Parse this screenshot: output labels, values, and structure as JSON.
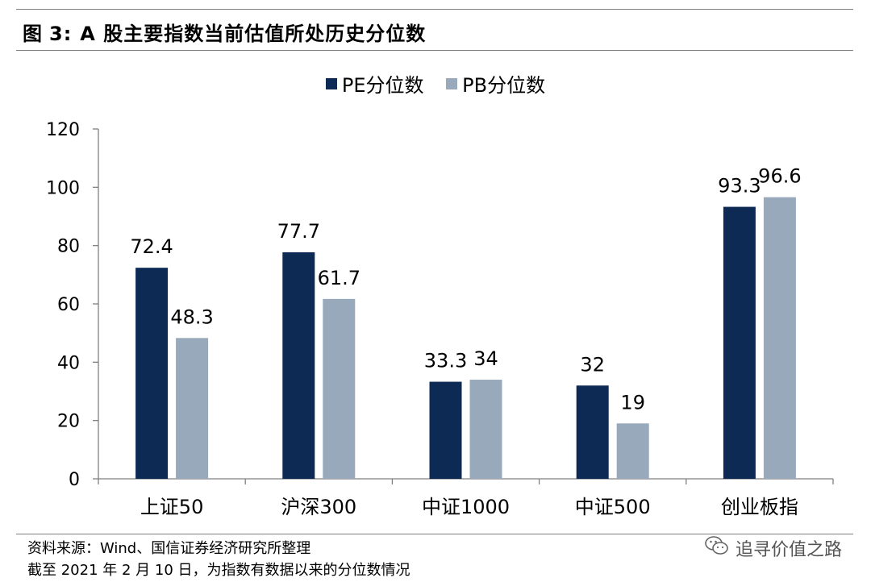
{
  "header": {
    "figure_label": "图",
    "figure_number": "3:",
    "title": "A 股主要指数当前估值所处历史分位数"
  },
  "chart_data": {
    "type": "bar",
    "categories": [
      "上证50",
      "沪深300",
      "中证1000",
      "中证500",
      "创业板指"
    ],
    "series": [
      {
        "name": "PE分位数",
        "values": [
          72.4,
          77.7,
          33.3,
          32,
          93.3
        ],
        "labels": [
          "72.4",
          "77.7",
          "33.3",
          "32",
          "93.3"
        ],
        "color": "#0d2a54"
      },
      {
        "name": "PB分位数",
        "values": [
          48.3,
          61.7,
          34,
          19,
          96.6
        ],
        "labels": [
          "48.3",
          "61.7",
          "34",
          "19",
          "96.6"
        ],
        "color": "#97a9bb"
      }
    ],
    "yticks": [
      "0",
      "20",
      "40",
      "60",
      "80",
      "100",
      "120"
    ],
    "ylim": [
      0,
      120
    ],
    "legend_position": "top-center",
    "grid": false
  },
  "footer": {
    "source": "资料来源：Wind、国信证券经济研究所整理",
    "note": "截至 2021 年 2 月 10 日，为指数有数据以来的分位数情况"
  },
  "watermark": {
    "icon": "wechat-icon",
    "text": "追寻价值之路"
  }
}
